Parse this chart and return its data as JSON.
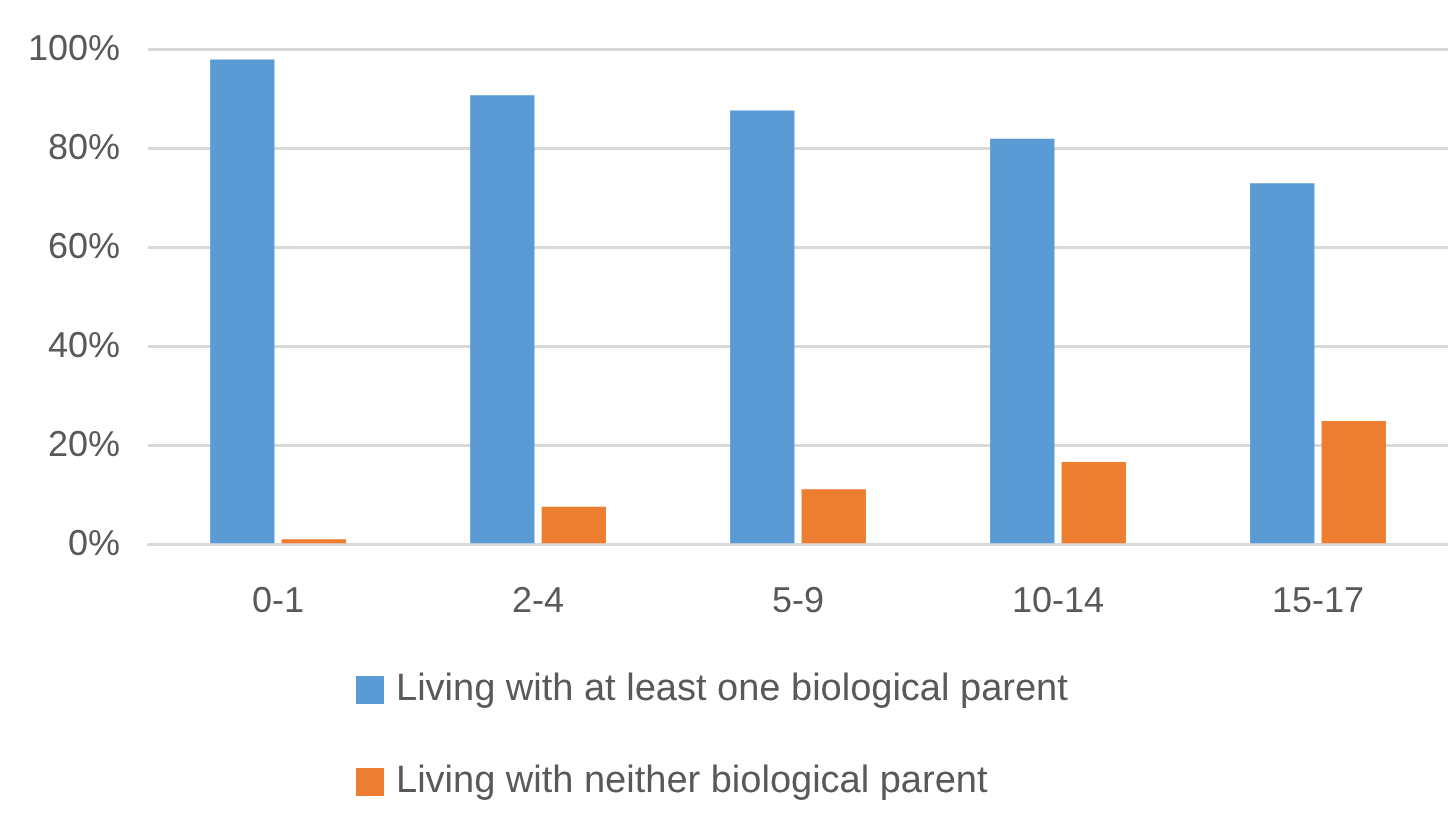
{
  "chart_data": {
    "type": "bar",
    "categories": [
      "0-1",
      "2-4",
      "5-9",
      "10-14",
      "15-17"
    ],
    "series": [
      {
        "name": "Living with at least one biological parent",
        "color": "#5b9bd5",
        "values": [
          98.0,
          90.8,
          87.7,
          82.0,
          73.0
        ]
      },
      {
        "name": "Living with neither biological parent",
        "color": "#ed7d31",
        "values": [
          1.1,
          7.7,
          11.2,
          16.7,
          25.0
        ]
      }
    ],
    "ylim": [
      0,
      100
    ],
    "yticks": [
      {
        "value": 0,
        "label": "0%"
      },
      {
        "value": 20,
        "label": "20%"
      },
      {
        "value": 40,
        "label": "40%"
      },
      {
        "value": 60,
        "label": "60%"
      },
      {
        "value": 80,
        "label": "80%"
      },
      {
        "value": 100,
        "label": "100%"
      }
    ],
    "grid": "y",
    "legend": "bottom"
  }
}
